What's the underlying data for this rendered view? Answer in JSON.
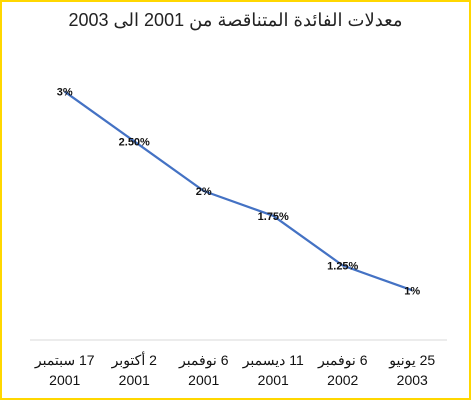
{
  "chart_data": {
    "type": "line",
    "title": "معدلات الفائدة المتناقصة من 2001 الى 2003",
    "categories": [
      {
        "line1": "17 سبتمبر",
        "line2": "2001"
      },
      {
        "line1": "2 أكتوبر",
        "line2": "2001"
      },
      {
        "line1": "6 نوفمبر",
        "line2": "2001"
      },
      {
        "line1": "11 ديسمبر",
        "line2": "2001"
      },
      {
        "line1": "6 نوفمبر",
        "line2": "2002"
      },
      {
        "line1": "25 يونيو",
        "line2": "2003"
      }
    ],
    "values": [
      3,
      2.5,
      2,
      1.75,
      1.25,
      1
    ],
    "data_labels": [
      "3%",
      "2.50%",
      "2%",
      "1.75%",
      "1.25%",
      "1%"
    ],
    "ylim": [
      0.5,
      3.5
    ],
    "grid": false,
    "series_color": "#4472C4",
    "border_color": "#FFD700"
  }
}
